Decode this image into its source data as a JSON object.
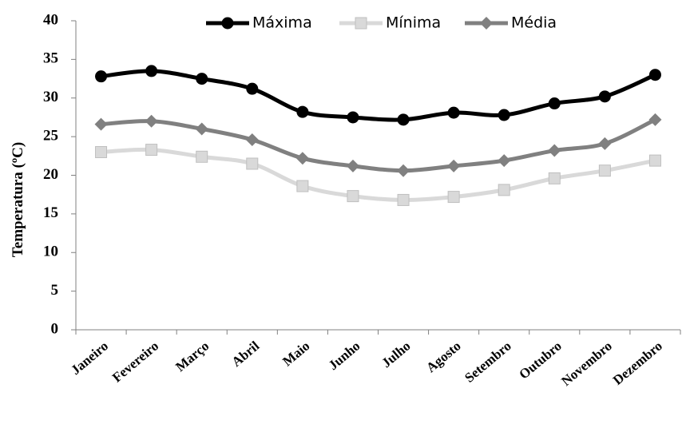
{
  "chart_data": {
    "type": "line",
    "y_label": "Temperatura (ºC)",
    "categories": [
      "Janeiro",
      "Fevereiro",
      "Março",
      "Abril",
      "Maio",
      "Junho",
      "Julho",
      "Agosto",
      "Setembro",
      "Outubro",
      "Novembro",
      "Dezembro"
    ],
    "series": [
      {
        "name": "Máxima",
        "color": "#000000",
        "marker": "circle",
        "values": [
          32.8,
          33.5,
          32.5,
          31.2,
          28.2,
          27.5,
          27.2,
          28.1,
          27.8,
          29.3,
          30.2,
          33.0
        ]
      },
      {
        "name": "Mínima",
        "color": "#d9d9d9",
        "marker": "square",
        "values": [
          23.0,
          23.3,
          22.4,
          21.5,
          18.6,
          17.3,
          16.8,
          17.2,
          18.1,
          19.6,
          20.6,
          21.9
        ]
      },
      {
        "name": "Média",
        "color": "#808080",
        "marker": "diamond",
        "values": [
          26.6,
          27.0,
          26.0,
          24.6,
          22.2,
          21.2,
          20.6,
          21.2,
          21.9,
          23.2,
          24.1,
          27.2
        ]
      }
    ],
    "ylim": [
      0,
      40
    ],
    "yticks": [
      0,
      5,
      10,
      15,
      20,
      25,
      30,
      35,
      40
    ],
    "legend": "top"
  }
}
